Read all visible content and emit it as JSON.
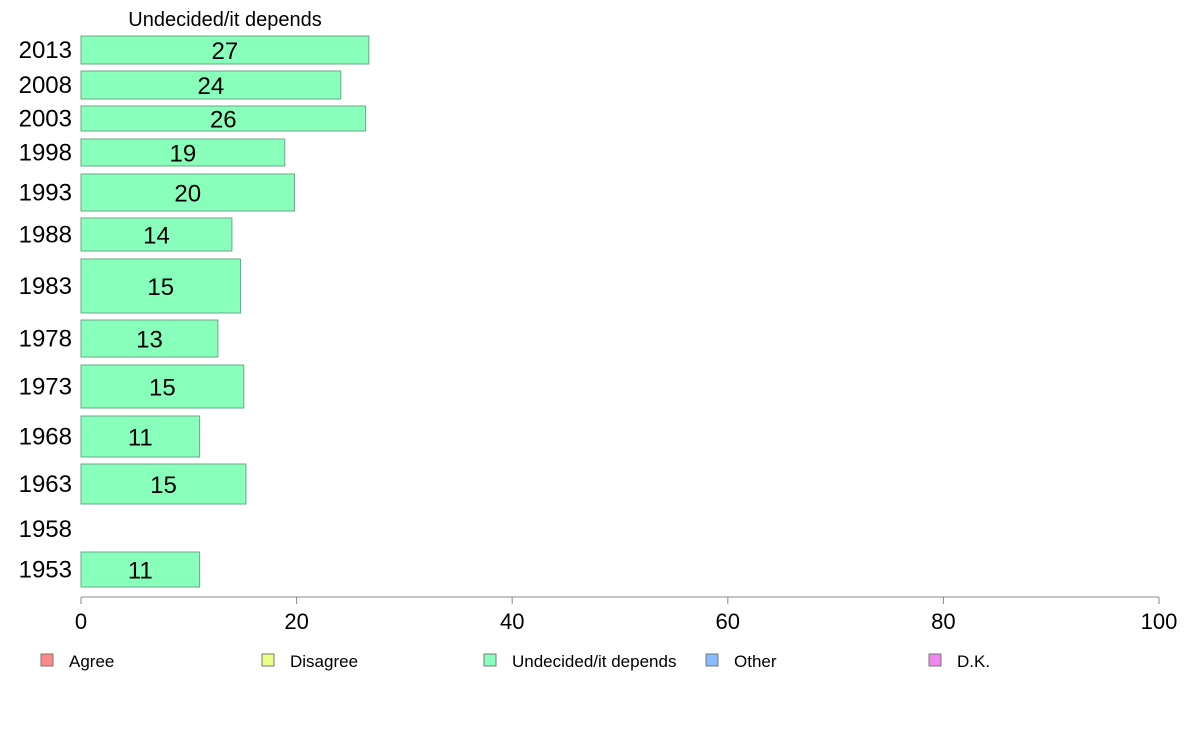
{
  "chart_data": {
    "type": "bar",
    "orientation": "horizontal",
    "title": "Undecided/it depends",
    "categories": [
      "2013",
      "2008",
      "2003",
      "1998",
      "1993",
      "1988",
      "1983",
      "1978",
      "1973",
      "1968",
      "1963",
      "1958",
      "1953"
    ],
    "series": [
      {
        "name": "Undecided/it depends",
        "color": "#88ffbb",
        "values": [
          26.7,
          24.1,
          26.4,
          18.9,
          19.8,
          14.0,
          14.8,
          12.7,
          15.1,
          11.0,
          15.3,
          null,
          11.0
        ],
        "labels": [
          "27",
          "24",
          "26",
          "19",
          "20",
          "14",
          "15",
          "13",
          "15",
          "11",
          "15",
          "",
          "11"
        ]
      }
    ],
    "xlim": [
      0,
      100
    ],
    "xticks": [
      0,
      20,
      40,
      60,
      80,
      100
    ],
    "xtick_labels": [
      "0",
      "20",
      "40",
      "60",
      "80",
      "100"
    ],
    "grid": false,
    "legend": {
      "placement": "bottom",
      "entries": [
        {
          "label": "Agree",
          "color": "#ff8888"
        },
        {
          "label": "Disagree",
          "color": "#eeff88"
        },
        {
          "label": "Undecided/it depends",
          "color": "#88ffbb"
        },
        {
          "label": "Other",
          "color": "#88bbff"
        },
        {
          "label": "D.K.",
          "color": "#ee88ee"
        }
      ]
    }
  }
}
